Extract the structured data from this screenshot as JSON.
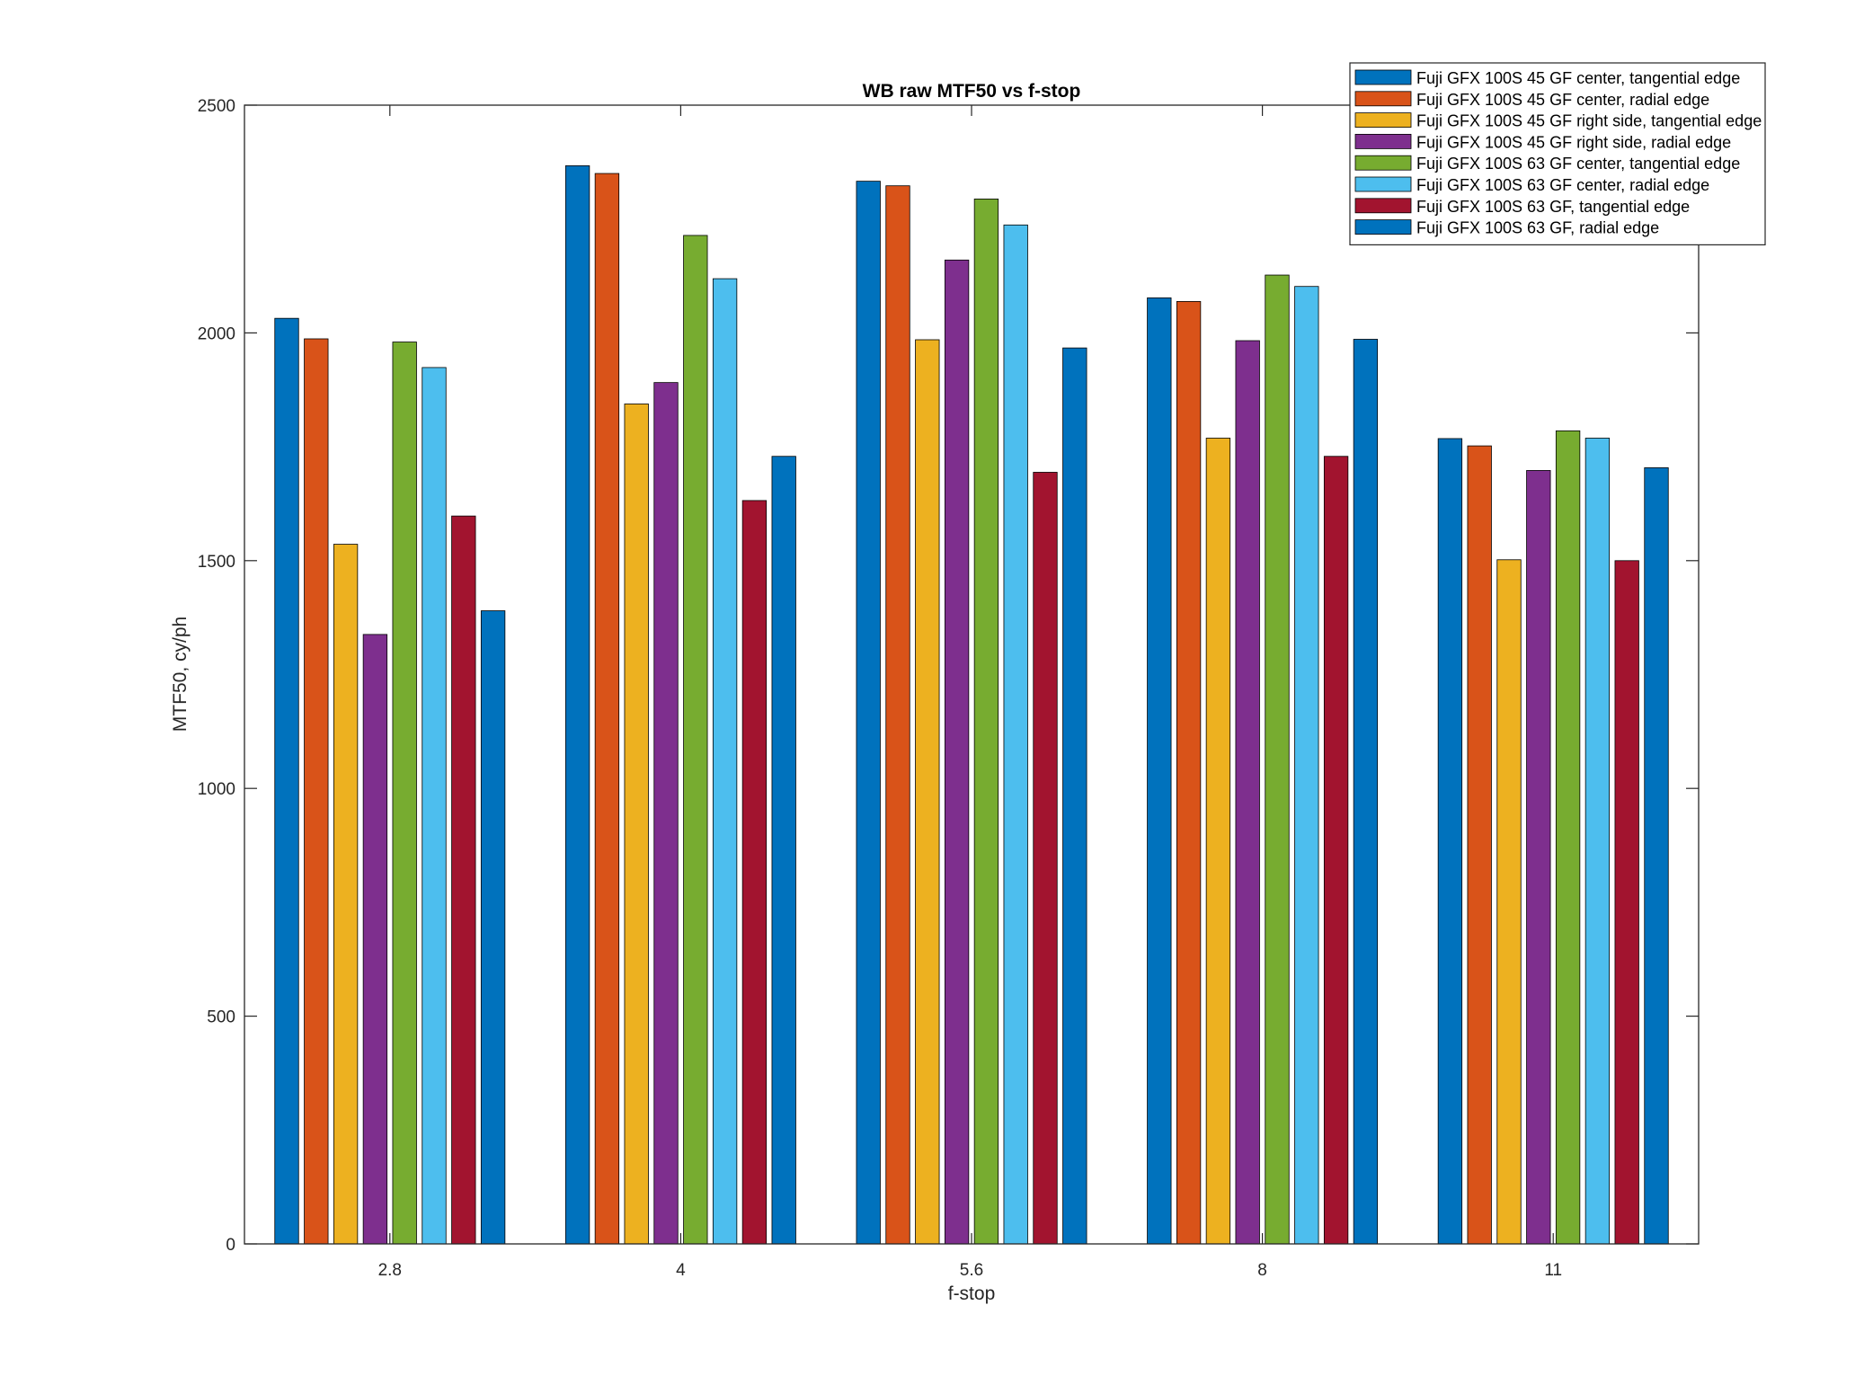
{
  "chart_data": {
    "type": "bar",
    "title": "WB raw MTF50 vs f-stop",
    "xlabel": "f-stop",
    "ylabel": "MTF50, cy/ph",
    "categories": [
      "2.8",
      "4",
      "5.6",
      "8",
      "11"
    ],
    "ylim": [
      0,
      2500
    ],
    "yticks": [
      0,
      500,
      1000,
      1500,
      2000,
      2500
    ],
    "grid": false,
    "legend_position": "top-right",
    "series": [
      {
        "name": "Fuji GFX 100S 45 GF center, tangential edge",
        "color": "#0072BD",
        "values": [
          2032,
          2367,
          2333,
          2077,
          1768
        ]
      },
      {
        "name": "Fuji GFX 100S 45 GF center, radial edge",
        "color": "#D95319",
        "values": [
          1987,
          2350,
          2323,
          2069,
          1752
        ]
      },
      {
        "name": "Fuji GFX 100S 45 GF right side, tangential edge",
        "color": "#EDB120",
        "values": [
          1536,
          1844,
          1985,
          1769,
          1502
        ]
      },
      {
        "name": "Fuji GFX 100S 45 GF right side, radial edge",
        "color": "#7E2F8E",
        "values": [
          1338,
          1891,
          2160,
          1983,
          1698
        ]
      },
      {
        "name": "Fuji GFX 100S 63 GF center, tangential edge",
        "color": "#77AC30",
        "values": [
          1980,
          2214,
          2294,
          2127,
          1785
        ]
      },
      {
        "name": "Fuji GFX 100S 63 GF center, radial edge",
        "color": "#4DBEEE",
        "values": [
          1924,
          2119,
          2237,
          2102,
          1769
        ]
      },
      {
        "name": "Fuji GFX 100S 63 GF, tangential edge",
        "color": "#A2142F",
        "values": [
          1598,
          1632,
          1694,
          1729,
          1500
        ]
      },
      {
        "name": "Fuji GFX 100S 63 GF, radial edge",
        "color": "#0072BD",
        "values": [
          1390,
          1729,
          1967,
          1986,
          1704
        ]
      }
    ]
  }
}
